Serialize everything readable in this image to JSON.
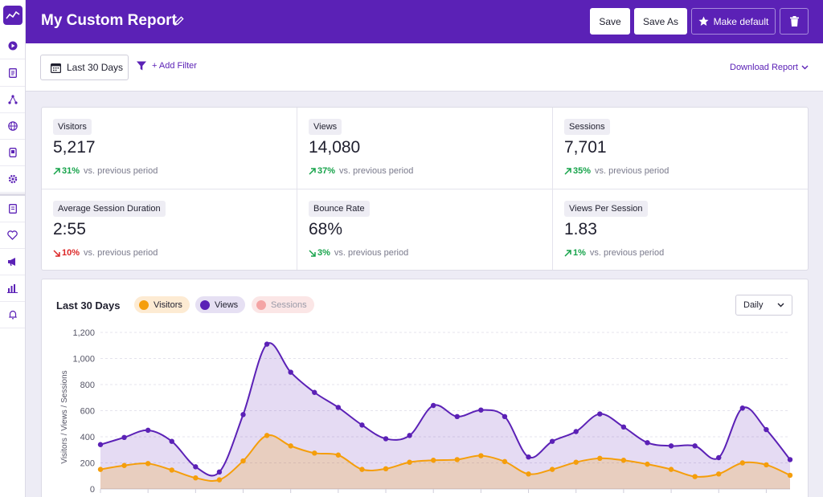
{
  "header": {
    "title": "My Custom Report",
    "save_label": "Save",
    "save_as_label": "Save As",
    "make_default_label": "Make default",
    "bg_color": "#5b21b6"
  },
  "sidebar": {
    "items": [
      "dashboard-icon",
      "report-icon",
      "network-icon",
      "globe-icon",
      "mobile-report-icon",
      "settings-icon",
      "pages-icon",
      "heart-icon",
      "megaphone-icon",
      "bar-chart-icon",
      "bell-icon"
    ]
  },
  "toolbar": {
    "date_range": "Last 30 Days",
    "add_filter": "+ Add Filter",
    "download": "Download Report"
  },
  "stats": [
    {
      "label": "Visitors",
      "value": "5,217",
      "change": "31%",
      "direction": "up",
      "suffix": "vs. previous period"
    },
    {
      "label": "Views",
      "value": "14,080",
      "change": "37%",
      "direction": "up",
      "suffix": "vs. previous period"
    },
    {
      "label": "Sessions",
      "value": "7,701",
      "change": "35%",
      "direction": "up",
      "suffix": "vs. previous period"
    },
    {
      "label": "Average Session Duration",
      "value": "2:55",
      "change": "10%",
      "direction": "down",
      "suffix": "vs. previous period"
    },
    {
      "label": "Bounce Rate",
      "value": "68%",
      "change": "3%",
      "direction": "up",
      "suffix": "vs. previous period"
    },
    {
      "label": "Views Per Session",
      "value": "1.83",
      "change": "1%",
      "direction": "up",
      "suffix": "vs. previous period"
    }
  ],
  "chart": {
    "title": "Last 30 Days",
    "granularity": "Daily",
    "legend": [
      {
        "name": "Visitors",
        "color": "#f59e0b",
        "pill_bg": "#fdebd3",
        "active": true
      },
      {
        "name": "Views",
        "color": "#5b21b6",
        "pill_bg": "#e6e0f3",
        "active": true
      },
      {
        "name": "Sessions",
        "color": "#f4a4a4",
        "pill_bg": "#fbe6e6",
        "active": false
      }
    ]
  },
  "chart_data": {
    "type": "area",
    "ylabel": "Visitors / Views / Sessions",
    "ylim": [
      0,
      1200
    ],
    "yticks": [
      "0",
      "200",
      "400",
      "600",
      "800",
      "1,000",
      "1,200"
    ],
    "grid": true,
    "series": [
      {
        "name": "Views",
        "color": "#5b21b6",
        "values": [
          340,
          395,
          450,
          365,
          170,
          130,
          570,
          1110,
          895,
          740,
          625,
          490,
          385,
          410,
          640,
          555,
          605,
          555,
          245,
          365,
          440,
          575,
          475,
          355,
          330,
          330,
          240,
          620,
          455,
          225
        ]
      },
      {
        "name": "Visitors",
        "color": "#f59e0b",
        "values": [
          150,
          180,
          195,
          145,
          85,
          70,
          215,
          410,
          330,
          275,
          260,
          150,
          155,
          205,
          220,
          225,
          255,
          210,
          115,
          150,
          205,
          235,
          220,
          190,
          150,
          95,
          115,
          200,
          185,
          105
        ]
      }
    ]
  }
}
